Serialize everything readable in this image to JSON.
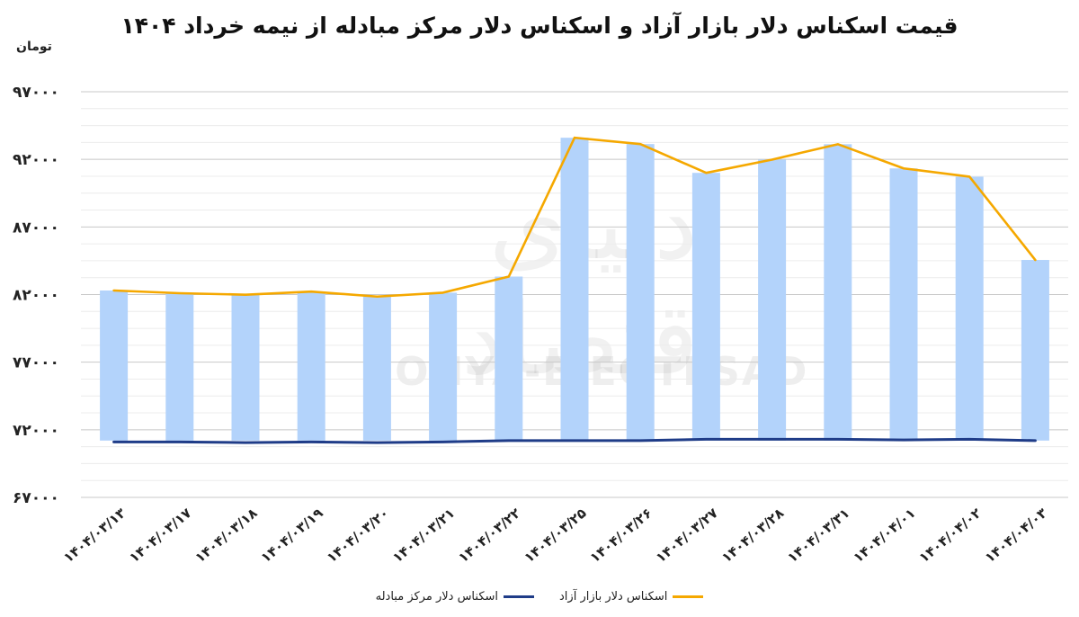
{
  "chart_data": {
    "type": "bar+line",
    "title": "قیمت اسکناس دلار بازار آزاد و اسکناس دلار مرکز مبادله از نیمه خرداد ۱۴۰۴",
    "ylabel": "تومان",
    "ylim": [
      67000,
      97000
    ],
    "y_ticks": [
      67000,
      72000,
      77000,
      82000,
      87000,
      92000,
      97000
    ],
    "y_tick_labels": [
      "۶۷۰۰۰",
      "۷۲۰۰۰",
      "۷۷۰۰۰",
      "۸۲۰۰۰",
      "۸۷۰۰۰",
      "۹۲۰۰۰",
      "۹۷۰۰۰"
    ],
    "categories": [
      "۱۴۰۴/۰۳/۱۳",
      "۱۴۰۴/۰۳/۱۷",
      "۱۴۰۴/۰۳/۱۸",
      "۱۴۰۴/۰۳/۱۹",
      "۱۴۰۴/۰۳/۲۰",
      "۱۴۰۴/۰۳/۲۱",
      "۱۴۰۴/۰۳/۲۲",
      "۱۴۰۴/۰۳/۲۵",
      "۱۴۰۴/۰۳/۲۶",
      "۱۴۰۴/۰۳/۲۷",
      "۱۴۰۴/۰۳/۲۸",
      "۱۴۰۴/۰۳/۳۱",
      "۱۴۰۴/۰۴/۰۱",
      "۱۴۰۴/۰۴/۰۲",
      "۱۴۰۴/۰۴/۰۳"
    ],
    "bars": {
      "base": 71200,
      "values": [
        82300,
        82100,
        81990,
        82220,
        81850,
        82140,
        83330,
        93600,
        93130,
        91000,
        91980,
        93120,
        91330,
        90720,
        84560
      ]
    },
    "series": [
      {
        "name": "اسکناس دلار مرکز مبادله",
        "type": "line",
        "color": "#1f3c88",
        "values": [
          71100,
          71100,
          71050,
          71100,
          71050,
          71100,
          71200,
          71200,
          71200,
          71300,
          71300,
          71300,
          71250,
          71300,
          71200
        ]
      },
      {
        "name": "اسکناس دلار بازار آزاد",
        "type": "line",
        "color": "#f5a800",
        "values": [
          82300,
          82100,
          81990,
          82220,
          81850,
          82140,
          83330,
          93600,
          93130,
          91000,
          91980,
          93120,
          91330,
          90720,
          84560
        ]
      }
    ],
    "bar_color": "#b3d3fb",
    "grid_color": "#d4d4d4",
    "grid": true,
    "legend_position": "bottom"
  },
  "watermark": {
    "text_en": "DONYA-E-EQTESAD",
    "text_fa": "دنیای اقتصاد"
  }
}
